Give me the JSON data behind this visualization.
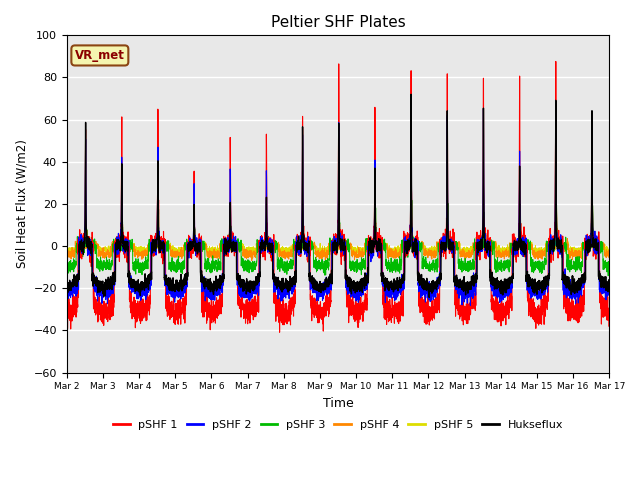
{
  "title": "Peltier SHF Plates",
  "xlabel": "Time",
  "ylabel": "Soil Heat Flux (W/m2)",
  "ylim": [
    -60,
    100
  ],
  "background_color": "#e8e8e8",
  "grid_color": "white",
  "annotation_text": "VR_met",
  "annotation_box_color": "#f5f5b0",
  "annotation_border_color": "#8B4513",
  "series_colors": {
    "pSHF 1": "#ff0000",
    "pSHF 2": "#0000ff",
    "pSHF 3": "#00bb00",
    "pSHF 4": "#ff8800",
    "pSHF 5": "#dddd00",
    "Hukseflux": "#000000"
  },
  "x_tick_labels": [
    "Mar 2",
    "Mar 3",
    "Mar 4",
    "Mar 5",
    "Mar 6",
    "Mar 7",
    "Mar 8",
    "Mar 9",
    "Mar 10",
    "Mar 11",
    "Mar 12",
    "Mar 13",
    "Mar 14",
    "Mar 15",
    "Mar 16",
    "Mar 17"
  ],
  "n_days": 15,
  "pts_per_day": 288
}
